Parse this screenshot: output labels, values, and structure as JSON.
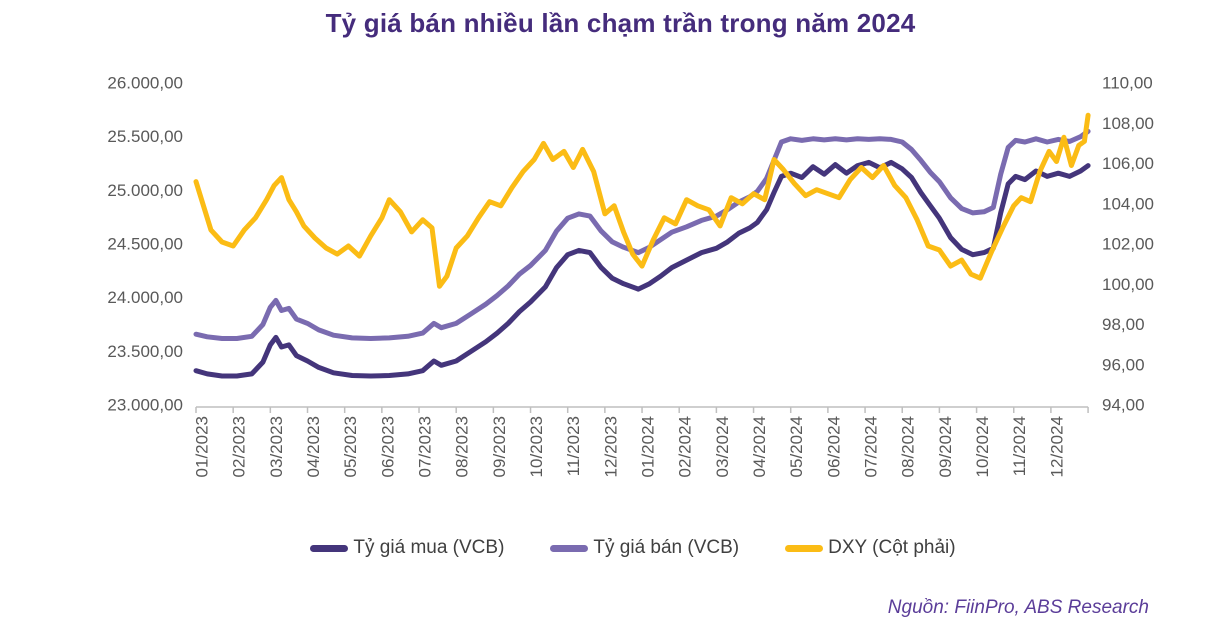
{
  "title": "Tỷ giá bán nhiều lần chạm trần trong năm 2024",
  "source": "Nguồn: FiinPro, ABS Research",
  "colors": {
    "title": "#452C7C",
    "source": "#5B3D99",
    "axis_text": "#595959",
    "axis_line": "#BFBFBF",
    "legend_text": "#404040",
    "series_mua": "#44357B",
    "series_ban": "#7A6BB0",
    "series_dxy": "#FBBC15",
    "background": "#FFFFFF"
  },
  "legend": [
    {
      "label": "Tỷ giá mua (VCB)",
      "color": "#44357B"
    },
    {
      "label": "Tỷ giá bán (VCB)",
      "color": "#7A6BB0"
    },
    {
      "label": "DXY (Cột phải)",
      "color": "#FBBC15"
    }
  ],
  "chart_data": {
    "type": "line",
    "title": "Tỷ giá bán nhiều lần chạm trần trong năm 2024",
    "grid": false,
    "legend_position": "bottom",
    "x_axis": {
      "labels": [
        "01/2023",
        "02/2023",
        "03/2023",
        "04/2023",
        "05/2023",
        "06/2023",
        "07/2023",
        "08/2023",
        "09/2023",
        "10/2023",
        "11/2023",
        "12/2023",
        "01/2024",
        "02/2024",
        "03/2024",
        "04/2024",
        "05/2024",
        "06/2024",
        "07/2024",
        "08/2024",
        "09/2024",
        "10/2024",
        "11/2024",
        "12/2024"
      ],
      "label_rotation_deg": -90
    },
    "left_axis": {
      "min": 23000,
      "max": 26000,
      "step": 500,
      "tick_labels": [
        "23.000,00",
        "23.500,00",
        "24.000,00",
        "24.500,00",
        "25.000,00",
        "25.500,00",
        "26.000,00"
      ]
    },
    "right_axis": {
      "min": 94,
      "max": 110,
      "step": 2,
      "tick_labels": [
        "94,00",
        "96,00",
        "98,00",
        "100,00",
        "102,00",
        "104,00",
        "106,00",
        "108,00",
        "110,00"
      ]
    },
    "series": [
      {
        "name": "Tỷ giá mua (VCB)",
        "axis": "left",
        "color": "#44357B",
        "width": 5,
        "points": [
          [
            0,
            23320
          ],
          [
            0.3,
            23290
          ],
          [
            0.7,
            23270
          ],
          [
            1.1,
            23270
          ],
          [
            1.5,
            23290
          ],
          [
            1.8,
            23400
          ],
          [
            2.0,
            23560
          ],
          [
            2.15,
            23630
          ],
          [
            2.3,
            23540
          ],
          [
            2.5,
            23560
          ],
          [
            2.7,
            23460
          ],
          [
            3.0,
            23410
          ],
          [
            3.3,
            23350
          ],
          [
            3.7,
            23300
          ],
          [
            4.2,
            23275
          ],
          [
            4.7,
            23270
          ],
          [
            5.2,
            23275
          ],
          [
            5.7,
            23290
          ],
          [
            6.1,
            23320
          ],
          [
            6.4,
            23410
          ],
          [
            6.6,
            23370
          ],
          [
            7.0,
            23410
          ],
          [
            7.4,
            23500
          ],
          [
            7.8,
            23590
          ],
          [
            8.1,
            23670
          ],
          [
            8.4,
            23760
          ],
          [
            8.7,
            23870
          ],
          [
            9.0,
            23960
          ],
          [
            9.4,
            24100
          ],
          [
            9.7,
            24280
          ],
          [
            10.0,
            24400
          ],
          [
            10.3,
            24440
          ],
          [
            10.6,
            24420
          ],
          [
            10.9,
            24280
          ],
          [
            11.2,
            24180
          ],
          [
            11.5,
            24130
          ],
          [
            11.9,
            24080
          ],
          [
            12.2,
            24130
          ],
          [
            12.5,
            24200
          ],
          [
            12.8,
            24280
          ],
          [
            13.2,
            24350
          ],
          [
            13.6,
            24420
          ],
          [
            14.0,
            24460
          ],
          [
            14.3,
            24520
          ],
          [
            14.6,
            24600
          ],
          [
            14.9,
            24650
          ],
          [
            15.1,
            24700
          ],
          [
            15.35,
            24820
          ],
          [
            15.55,
            24980
          ],
          [
            15.75,
            25130
          ],
          [
            16.0,
            25160
          ],
          [
            16.3,
            25120
          ],
          [
            16.6,
            25220
          ],
          [
            16.9,
            25150
          ],
          [
            17.2,
            25240
          ],
          [
            17.5,
            25160
          ],
          [
            17.8,
            25230
          ],
          [
            18.1,
            25260
          ],
          [
            18.4,
            25210
          ],
          [
            18.7,
            25260
          ],
          [
            19.0,
            25200
          ],
          [
            19.25,
            25120
          ],
          [
            19.5,
            24980
          ],
          [
            19.75,
            24860
          ],
          [
            20.0,
            24740
          ],
          [
            20.3,
            24560
          ],
          [
            20.6,
            24450
          ],
          [
            20.9,
            24400
          ],
          [
            21.2,
            24420
          ],
          [
            21.45,
            24460
          ],
          [
            21.65,
            24790
          ],
          [
            21.85,
            25060
          ],
          [
            22.05,
            25130
          ],
          [
            22.3,
            25100
          ],
          [
            22.6,
            25180
          ],
          [
            22.9,
            25130
          ],
          [
            23.2,
            25160
          ],
          [
            23.5,
            25130
          ],
          [
            23.8,
            25180
          ],
          [
            24.0,
            25230
          ]
        ]
      },
      {
        "name": "Tỷ giá bán (VCB)",
        "axis": "left",
        "color": "#7A6BB0",
        "width": 5,
        "points": [
          [
            0,
            23660
          ],
          [
            0.3,
            23635
          ],
          [
            0.7,
            23620
          ],
          [
            1.1,
            23620
          ],
          [
            1.5,
            23640
          ],
          [
            1.8,
            23750
          ],
          [
            2.0,
            23910
          ],
          [
            2.15,
            23975
          ],
          [
            2.3,
            23880
          ],
          [
            2.5,
            23900
          ],
          [
            2.7,
            23800
          ],
          [
            3.0,
            23760
          ],
          [
            3.3,
            23700
          ],
          [
            3.7,
            23650
          ],
          [
            4.2,
            23625
          ],
          [
            4.7,
            23620
          ],
          [
            5.2,
            23625
          ],
          [
            5.7,
            23640
          ],
          [
            6.1,
            23670
          ],
          [
            6.4,
            23760
          ],
          [
            6.6,
            23720
          ],
          [
            7.0,
            23760
          ],
          [
            7.4,
            23850
          ],
          [
            7.8,
            23940
          ],
          [
            8.1,
            24020
          ],
          [
            8.4,
            24110
          ],
          [
            8.7,
            24220
          ],
          [
            9.0,
            24300
          ],
          [
            9.4,
            24440
          ],
          [
            9.7,
            24620
          ],
          [
            10.0,
            24740
          ],
          [
            10.3,
            24780
          ],
          [
            10.6,
            24760
          ],
          [
            10.9,
            24620
          ],
          [
            11.2,
            24520
          ],
          [
            11.5,
            24470
          ],
          [
            11.9,
            24420
          ],
          [
            12.2,
            24470
          ],
          [
            12.5,
            24540
          ],
          [
            12.8,
            24610
          ],
          [
            13.2,
            24660
          ],
          [
            13.6,
            24720
          ],
          [
            14.0,
            24760
          ],
          [
            14.3,
            24820
          ],
          [
            14.6,
            24890
          ],
          [
            14.9,
            24940
          ],
          [
            15.1,
            24990
          ],
          [
            15.35,
            25110
          ],
          [
            15.55,
            25280
          ],
          [
            15.75,
            25450
          ],
          [
            16.0,
            25480
          ],
          [
            16.3,
            25465
          ],
          [
            16.6,
            25480
          ],
          [
            16.9,
            25470
          ],
          [
            17.2,
            25480
          ],
          [
            17.5,
            25470
          ],
          [
            17.8,
            25480
          ],
          [
            18.1,
            25475
          ],
          [
            18.4,
            25480
          ],
          [
            18.7,
            25475
          ],
          [
            19.0,
            25450
          ],
          [
            19.25,
            25380
          ],
          [
            19.5,
            25280
          ],
          [
            19.75,
            25170
          ],
          [
            20.0,
            25080
          ],
          [
            20.3,
            24930
          ],
          [
            20.6,
            24830
          ],
          [
            20.9,
            24790
          ],
          [
            21.2,
            24800
          ],
          [
            21.45,
            24840
          ],
          [
            21.65,
            25150
          ],
          [
            21.85,
            25400
          ],
          [
            22.05,
            25465
          ],
          [
            22.3,
            25450
          ],
          [
            22.6,
            25480
          ],
          [
            22.9,
            25450
          ],
          [
            23.2,
            25475
          ],
          [
            23.5,
            25455
          ],
          [
            23.8,
            25500
          ],
          [
            24.0,
            25550
          ]
        ]
      },
      {
        "name": "DXY (Cột phải)",
        "axis": "right",
        "color": "#FBBC15",
        "width": 5,
        "points": [
          [
            0,
            105.1
          ],
          [
            0.15,
            104.2
          ],
          [
            0.4,
            102.7
          ],
          [
            0.7,
            102.1
          ],
          [
            1.0,
            101.9
          ],
          [
            1.3,
            102.7
          ],
          [
            1.6,
            103.3
          ],
          [
            1.9,
            104.2
          ],
          [
            2.1,
            104.9
          ],
          [
            2.3,
            105.3
          ],
          [
            2.5,
            104.2
          ],
          [
            2.7,
            103.6
          ],
          [
            2.9,
            102.9
          ],
          [
            3.2,
            102.3
          ],
          [
            3.5,
            101.8
          ],
          [
            3.8,
            101.5
          ],
          [
            4.1,
            101.9
          ],
          [
            4.4,
            101.4
          ],
          [
            4.7,
            102.4
          ],
          [
            5.0,
            103.3
          ],
          [
            5.2,
            104.2
          ],
          [
            5.5,
            103.6
          ],
          [
            5.8,
            102.6
          ],
          [
            6.1,
            103.2
          ],
          [
            6.35,
            102.8
          ],
          [
            6.55,
            99.9
          ],
          [
            6.75,
            100.4
          ],
          [
            7.0,
            101.8
          ],
          [
            7.3,
            102.4
          ],
          [
            7.6,
            103.3
          ],
          [
            7.9,
            104.1
          ],
          [
            8.2,
            103.9
          ],
          [
            8.5,
            104.8
          ],
          [
            8.8,
            105.6
          ],
          [
            9.1,
            106.2
          ],
          [
            9.35,
            107.0
          ],
          [
            9.6,
            106.2
          ],
          [
            9.9,
            106.6
          ],
          [
            10.15,
            105.8
          ],
          [
            10.4,
            106.7
          ],
          [
            10.7,
            105.6
          ],
          [
            11.0,
            103.5
          ],
          [
            11.25,
            103.9
          ],
          [
            11.5,
            102.6
          ],
          [
            11.75,
            101.5
          ],
          [
            12.0,
            100.9
          ],
          [
            12.3,
            102.2
          ],
          [
            12.6,
            103.3
          ],
          [
            12.9,
            103.0
          ],
          [
            13.2,
            104.2
          ],
          [
            13.5,
            103.9
          ],
          [
            13.8,
            103.7
          ],
          [
            14.1,
            102.9
          ],
          [
            14.4,
            104.3
          ],
          [
            14.7,
            104.0
          ],
          [
            15.0,
            104.5
          ],
          [
            15.3,
            104.2
          ],
          [
            15.55,
            106.2
          ],
          [
            15.8,
            105.7
          ],
          [
            16.1,
            105.0
          ],
          [
            16.4,
            104.4
          ],
          [
            16.7,
            104.7
          ],
          [
            17.0,
            104.5
          ],
          [
            17.3,
            104.3
          ],
          [
            17.6,
            105.2
          ],
          [
            17.9,
            105.8
          ],
          [
            18.2,
            105.3
          ],
          [
            18.5,
            105.9
          ],
          [
            18.8,
            104.9
          ],
          [
            19.1,
            104.3
          ],
          [
            19.4,
            103.2
          ],
          [
            19.7,
            101.9
          ],
          [
            20.0,
            101.7
          ],
          [
            20.3,
            100.9
          ],
          [
            20.6,
            101.2
          ],
          [
            20.85,
            100.5
          ],
          [
            21.1,
            100.3
          ],
          [
            21.4,
            101.6
          ],
          [
            21.7,
            102.8
          ],
          [
            22.0,
            103.9
          ],
          [
            22.2,
            104.3
          ],
          [
            22.45,
            104.1
          ],
          [
            22.7,
            105.6
          ],
          [
            22.95,
            106.6
          ],
          [
            23.15,
            106.1
          ],
          [
            23.35,
            107.3
          ],
          [
            23.55,
            105.9
          ],
          [
            23.75,
            106.9
          ],
          [
            23.9,
            107.1
          ],
          [
            24.0,
            108.4
          ]
        ]
      }
    ]
  }
}
